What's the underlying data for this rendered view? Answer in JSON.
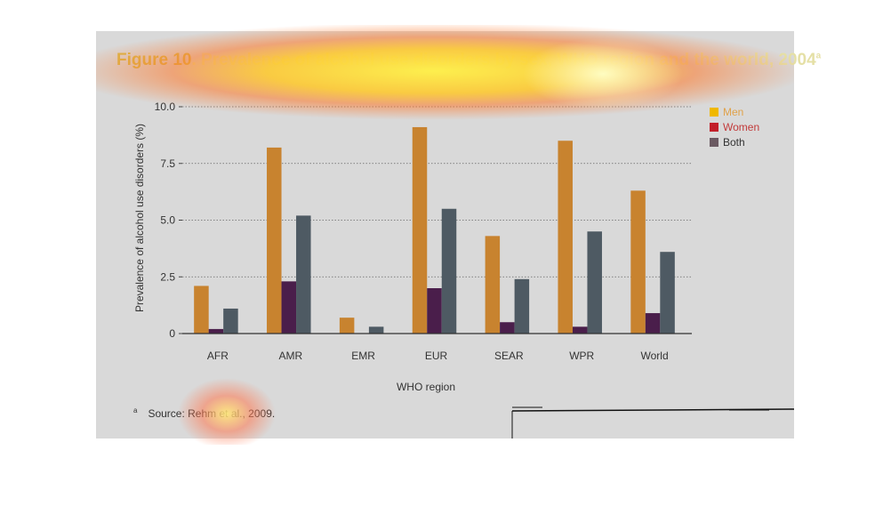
{
  "title": {
    "bold": "Figure 10",
    "rest": ". Prevalence of alcohol use disorders by sex, WHO region and the world, 2004",
    "superscript": "a"
  },
  "source": {
    "superscript": "a",
    "text": "Source: Rehm et al., 2009."
  },
  "chart_data": {
    "type": "bar",
    "categories": [
      "AFR",
      "AMR",
      "EMR",
      "EUR",
      "SEAR",
      "WPR",
      "World"
    ],
    "series": [
      {
        "name": "Men",
        "color": "#c8832f",
        "values": [
          2.1,
          8.2,
          0.7,
          9.1,
          4.3,
          8.5,
          6.3
        ]
      },
      {
        "name": "Women",
        "color": "#4a1e4b",
        "values": [
          0.2,
          2.3,
          0.0,
          2.0,
          0.5,
          0.3,
          0.9
        ]
      },
      {
        "name": "Both",
        "color": "#4e5a63",
        "values": [
          1.1,
          5.2,
          0.3,
          5.5,
          2.4,
          4.5,
          3.6
        ]
      }
    ],
    "legend": [
      {
        "label": "Men",
        "color": "#f0b800"
      },
      {
        "label": "Women",
        "color": "#c21f2a"
      },
      {
        "label": "Both",
        "color": "#6b5a62"
      }
    ],
    "yticks": [
      "0",
      "2.5",
      "5.0",
      "7.5",
      "10.0"
    ],
    "ylim": [
      0,
      10
    ],
    "xlabel": "WHO region",
    "ylabel": "Prevalence of alcohol use disorders (%)",
    "grid": "horizontal dotted",
    "legend_position": "top-right"
  }
}
